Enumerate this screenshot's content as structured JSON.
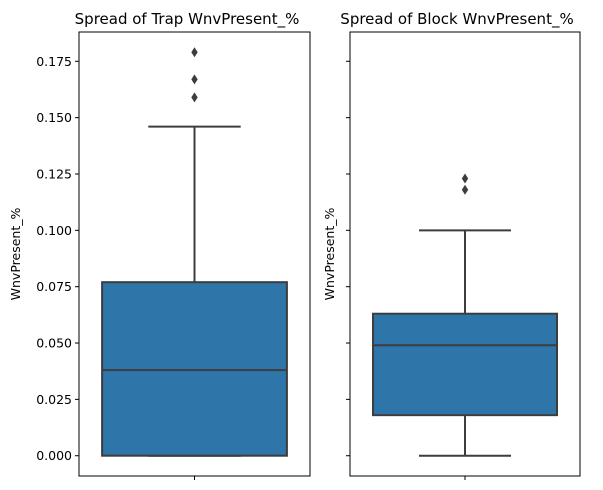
{
  "colors": {
    "box_fill": "#2e75aa",
    "line": "#3d3d3d"
  },
  "chart_data": [
    {
      "type": "box",
      "title": "Spread of Trap WnvPresent_%",
      "ylabel": "WnvPresent_%",
      "ylim": [
        -0.009,
        0.188
      ],
      "yticks": [
        0.0,
        0.025,
        0.05,
        0.075,
        0.1,
        0.125,
        0.15,
        0.175
      ],
      "ytick_labels": [
        "0.000",
        "0.025",
        "0.050",
        "0.075",
        "0.100",
        "0.125",
        "0.150",
        "0.175"
      ],
      "show_ytick_labels": true,
      "box": {
        "whisker_low": 0.0,
        "q1": 0.0,
        "median": 0.038,
        "q3": 0.077,
        "whisker_high": 0.146
      },
      "outliers": [
        0.159,
        0.167,
        0.179
      ]
    },
    {
      "type": "box",
      "title": "Spread of Block WnvPresent_%",
      "ylabel": "WnvPresent_%",
      "ylim": [
        -0.009,
        0.188
      ],
      "yticks": [
        0.0,
        0.025,
        0.05,
        0.075,
        0.1,
        0.125,
        0.15,
        0.175
      ],
      "ytick_labels": [
        "0.000",
        "0.025",
        "0.050",
        "0.075",
        "0.100",
        "0.125",
        "0.150",
        "0.175"
      ],
      "show_ytick_labels": false,
      "box": {
        "whisker_low": 0.0,
        "q1": 0.018,
        "median": 0.049,
        "q3": 0.063,
        "whisker_high": 0.1
      },
      "outliers": [
        0.118,
        0.123
      ]
    }
  ]
}
